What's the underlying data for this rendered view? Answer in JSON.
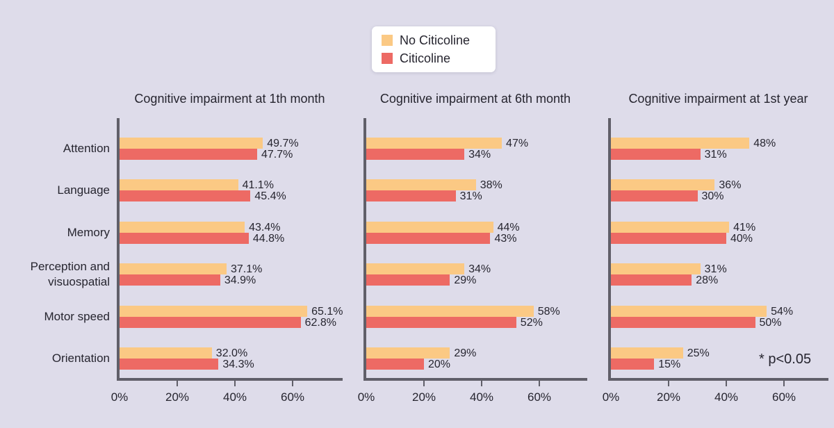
{
  "page": {
    "background_color": "#dedcea",
    "axis_color": "#605f69",
    "text_color": "#26252f"
  },
  "legend": {
    "items": [
      {
        "label": "No Citicoline",
        "color": "#fbc984"
      },
      {
        "label": "Citicoline",
        "color": "#ed6a64"
      }
    ]
  },
  "annotation": "* p<0.05",
  "chart_data": [
    {
      "type": "bar",
      "orientation": "horizontal",
      "title": "Cognitive impairment at 1th month",
      "categories": [
        "Attention",
        "Language",
        "Memory",
        "Perception and visuospatial",
        "Motor speed",
        "Orientation"
      ],
      "series": [
        {
          "name": "No Citicoline",
          "values": [
            49.7,
            41.1,
            43.4,
            37.1,
            65.1,
            32.0
          ],
          "labels": [
            "49.7%",
            "41.1%",
            "43.4%",
            "37.1%",
            "65.1%",
            "32.0%"
          ]
        },
        {
          "name": "Citicoline",
          "values": [
            47.7,
            45.4,
            44.8,
            34.9,
            62.8,
            34.3
          ],
          "labels": [
            "47.7%",
            "45.4%",
            "44.8%",
            "34.9%",
            "62.8%",
            "34.3%"
          ]
        }
      ],
      "xticks": {
        "labels": [
          "0%",
          "20%",
          "40%",
          "60%"
        ],
        "values": [
          0,
          20,
          40,
          60
        ]
      },
      "xlim": [
        0,
        78
      ],
      "grid": false,
      "legend_position": "top-center"
    },
    {
      "type": "bar",
      "orientation": "horizontal",
      "title": "Cognitive impairment at 6th month",
      "categories": [
        "Attention",
        "Language",
        "Memory",
        "Perception and visuospatial",
        "Motor speed",
        "Orientation"
      ],
      "series": [
        {
          "name": "No Citicoline",
          "values": [
            47,
            38,
            44,
            34,
            58,
            29
          ],
          "labels": [
            "47%",
            "38%",
            "44%",
            "34%",
            "58%",
            "29%"
          ]
        },
        {
          "name": "Citicoline",
          "values": [
            34,
            31,
            43,
            29,
            52,
            20
          ],
          "labels": [
            "34%",
            "31%",
            "43%",
            "29%",
            "52%",
            "20%"
          ]
        }
      ],
      "xticks": {
        "labels": [
          "0%",
          "20%",
          "40%",
          "60%"
        ],
        "values": [
          0,
          20,
          40,
          60
        ]
      },
      "xlim": [
        0,
        77
      ],
      "grid": false,
      "legend_position": "top-center"
    },
    {
      "type": "bar",
      "orientation": "horizontal",
      "title": "Cognitive impairment at 1st year",
      "categories": [
        "Attention",
        "Language",
        "Memory",
        "Perception and visuospatial",
        "Motor speed",
        "Orientation"
      ],
      "series": [
        {
          "name": "No Citicoline",
          "values": [
            48,
            36,
            41,
            31,
            54,
            25
          ],
          "labels": [
            "48%",
            "36%",
            "41%",
            "31%",
            "54%",
            "25%"
          ]
        },
        {
          "name": "Citicoline",
          "values": [
            31,
            30,
            40,
            28,
            50,
            15
          ],
          "labels": [
            "31%",
            "30%",
            "40%",
            "28%",
            "50%",
            "15%"
          ]
        }
      ],
      "xticks": {
        "labels": [
          "0%",
          "20%",
          "40%",
          "60%"
        ],
        "values": [
          0,
          20,
          40,
          60
        ]
      },
      "xlim": [
        0,
        76
      ],
      "grid": false,
      "legend_position": "top-center"
    }
  ]
}
